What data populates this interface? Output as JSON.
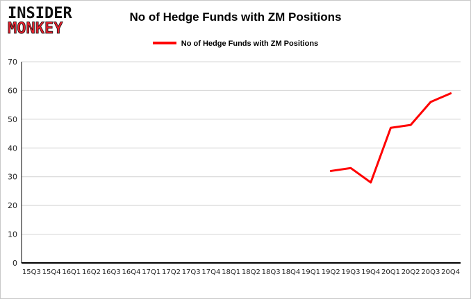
{
  "logo": {
    "line1": "INSIDER",
    "line2": "MONKEY"
  },
  "header": {
    "title": "No of Hedge Funds with ZM Positions"
  },
  "legend": {
    "label": "No of Hedge Funds with ZM Positions",
    "color": "#ff0000"
  },
  "chart_data": {
    "type": "line",
    "title": "No of Hedge Funds with ZM Positions",
    "xlabel": "",
    "ylabel": "",
    "ylim": [
      0,
      70
    ],
    "yticks": [
      0,
      10,
      20,
      30,
      40,
      50,
      60,
      70
    ],
    "grid": true,
    "legend_position": "top",
    "categories": [
      "15Q3",
      "15Q4",
      "16Q1",
      "16Q2",
      "16Q3",
      "16Q4",
      "17Q1",
      "17Q2",
      "17Q3",
      "17Q4",
      "18Q1",
      "18Q2",
      "18Q3",
      "18Q4",
      "19Q1",
      "19Q2",
      "19Q3",
      "19Q4",
      "20Q1",
      "20Q2",
      "20Q3",
      "20Q4"
    ],
    "series": [
      {
        "name": "No of Hedge Funds with ZM Positions",
        "color": "#ff0000",
        "values": [
          null,
          null,
          null,
          null,
          null,
          null,
          null,
          null,
          null,
          null,
          null,
          null,
          null,
          null,
          null,
          32,
          33,
          28,
          47,
          48,
          56,
          59
        ]
      }
    ]
  }
}
